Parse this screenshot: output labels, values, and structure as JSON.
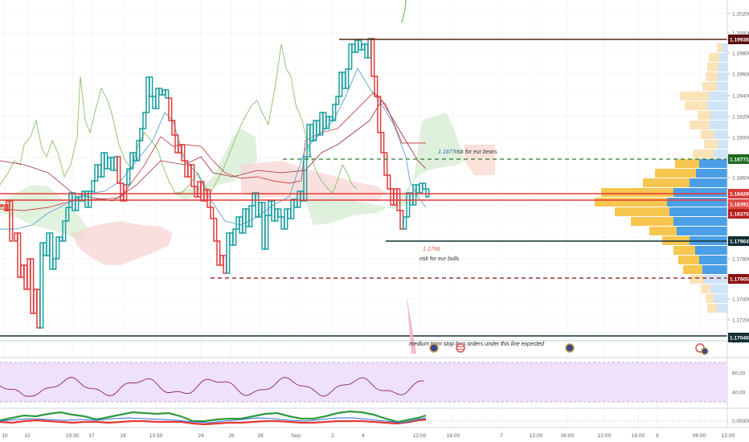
{
  "colors": {
    "up": "#1a9e9e",
    "down": "#e03b3b",
    "green_level": "#1d6b20",
    "dark_level": "#123034",
    "brown_level": "#5a2508",
    "red_level": "#8b1010",
    "rsi_line": "#8a2a5e",
    "rsi_band": "#efe0fb"
  },
  "price_axis": {
    "ticks": [
      "1.20200",
      "1.20000",
      "1.19800",
      "1.19600",
      "1.19400",
      "1.19200",
      "1.19000",
      "1.18800",
      "1.18600",
      "1.18400",
      "1.18200",
      "1.18000",
      "1.17800",
      "1.17600",
      "1.17400",
      "1.17200",
      "1.17000"
    ],
    "labels": [
      {
        "text": "1.19938",
        "color": "#5a0e0e"
      },
      {
        "text": "1.18771",
        "color": "#1d6b20"
      },
      {
        "text": "1.18429",
        "color": "#d63a3a"
      },
      {
        "text": "1.18391",
        "color": "#e24a4a"
      },
      {
        "text": "1.18375",
        "color": "#b81f1f"
      },
      {
        "text": "1.17964",
        "color": "#123034"
      },
      {
        "text": "1.17605",
        "color": "#8b1010"
      },
      {
        "text": "1.17046",
        "color": "#123034"
      }
    ]
  },
  "rsi_axis": {
    "ticks": [
      "60.00",
      "40.00"
    ]
  },
  "osc_axis": {
    "ticks": [
      "0.00000"
    ]
  },
  "time_axis": {
    "labels": [
      "10",
      "12",
      "19:30",
      "17",
      "19",
      "13:30",
      "24",
      "26",
      "28",
      "Sep",
      "2",
      "4",
      "12:00",
      "18:00",
      "7",
      "12:00",
      "06:00",
      "12:00",
      "18:00",
      "8",
      "06:00",
      "12:00"
    ]
  },
  "annotations": {
    "bears_price": "1.1877",
    "bears_text": "risk for eur bears",
    "bulls_price": "1.1796",
    "bulls_text": "risk for eur bulls",
    "stop_loss_text": "medium term stop loss orders under this line expected"
  }
}
